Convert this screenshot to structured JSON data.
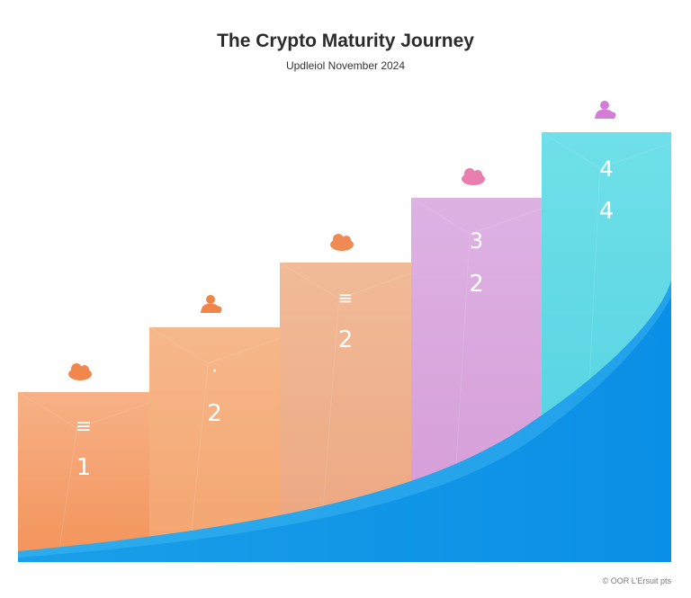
{
  "header": {
    "title": "The Crypto Maturity Journey",
    "subtitle": "Updleiol November 2024"
  },
  "steps": [
    {
      "symbol": "≡",
      "number": "1",
      "color": "#f3935a",
      "color_light": "#f7b186",
      "icon": "orange-blob-icon",
      "icon_color": "#f2874e"
    },
    {
      "symbol": "·",
      "number": "2",
      "color": "#f4a46e",
      "color_light": "#f6b88b",
      "icon": "orange-figure-icon",
      "icon_color": "#ef8548"
    },
    {
      "symbol": "≡",
      "number": "2",
      "color": "#eca580",
      "color_light": "#f1bb98",
      "icon": "orange-blob-icon",
      "icon_color": "#ef8a55"
    },
    {
      "symbol": "3",
      "number": "2",
      "color": "#d59ad6",
      "color_light": "#ddb2e3",
      "icon": "pink-blob-icon",
      "icon_color": "#e97fae"
    },
    {
      "symbol": "4",
      "number": "4",
      "color": "#4fcfe0",
      "color_light": "#6fe0e9",
      "icon": "purple-figure-icon",
      "icon_color": "#d27ed8"
    }
  ],
  "wave_color": "#0a8fe6",
  "footer": {
    "text": "© OOR L'Ersuit pts"
  }
}
